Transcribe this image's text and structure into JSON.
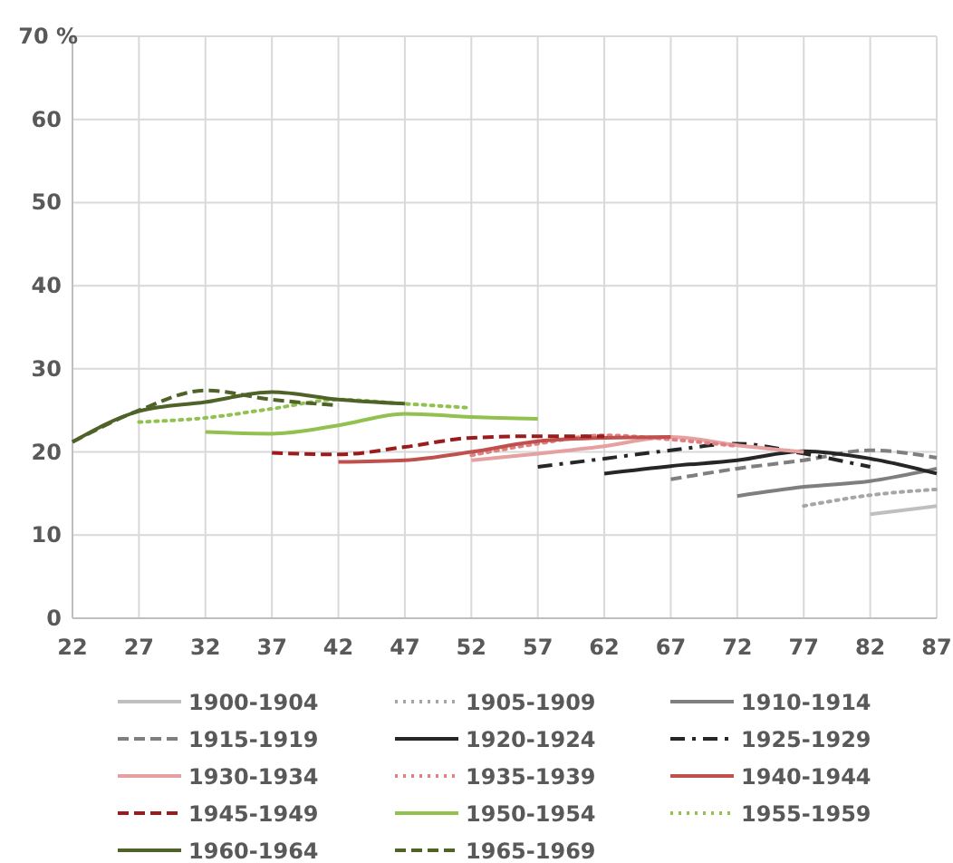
{
  "chart_data": {
    "type": "line",
    "xlim": [
      22,
      87
    ],
    "xticks": [
      22,
      27,
      32,
      37,
      42,
      47,
      52,
      57,
      62,
      67,
      72,
      77,
      82,
      87
    ],
    "ylim": [
      0,
      70
    ],
    "yticks": [
      0,
      10,
      20,
      30,
      40,
      50,
      60,
      {
        "value": 70,
        "label": "70 %"
      }
    ],
    "grid": true,
    "legend": "bottom",
    "series": [
      {
        "name": "1900-1904",
        "color": "#bfbfbf",
        "line_style": "solid",
        "x": [
          82,
          87
        ],
        "values": [
          12.5,
          13.5
        ]
      },
      {
        "name": "1905-1909",
        "color": "#a6a6a6",
        "line_style": "dotted",
        "x": [
          77,
          82,
          87
        ],
        "values": [
          13.5,
          14.8,
          15.5
        ]
      },
      {
        "name": "1910-1914",
        "color": "#7f7f7f",
        "line_style": "solid",
        "x": [
          72,
          77,
          82,
          87
        ],
        "values": [
          14.7,
          15.8,
          16.5,
          18
        ]
      },
      {
        "name": "1915-1919",
        "color": "#7f7f7f",
        "line_style": "dashed",
        "x": [
          67,
          72,
          77,
          82,
          87
        ],
        "values": [
          16.7,
          18,
          19,
          20.2,
          19.3
        ]
      },
      {
        "name": "1920-1924",
        "color": "#262626",
        "line_style": "solid",
        "x": [
          62,
          67,
          72,
          77,
          82,
          87
        ],
        "values": [
          17.4,
          18.3,
          19,
          20.1,
          19.2,
          17.4
        ]
      },
      {
        "name": "1925-1929",
        "color": "#262626",
        "line_style": "dashdot",
        "x": [
          57,
          62,
          67,
          72,
          77,
          82
        ],
        "values": [
          18.2,
          19.2,
          20.2,
          21,
          19.8,
          18.2
        ]
      },
      {
        "name": "1930-1934",
        "color": "#e6a0a0",
        "line_style": "solid",
        "x": [
          52,
          57,
          62,
          67,
          72,
          77
        ],
        "values": [
          19,
          19.8,
          20.7,
          21.8,
          20.8,
          20
        ]
      },
      {
        "name": "1935-1939",
        "color": "#e08080",
        "line_style": "dotted",
        "x": [
          52,
          57,
          62,
          67,
          72
        ],
        "values": [
          19.6,
          21,
          22,
          21.5,
          20.7
        ]
      },
      {
        "name": "1940-1944",
        "color": "#c0504d",
        "line_style": "solid",
        "x": [
          42,
          47,
          52,
          57,
          62,
          67
        ],
        "values": [
          18.8,
          19,
          20,
          21.3,
          21.7,
          21.8
        ]
      },
      {
        "name": "1945-1949",
        "color": "#9b1c1c",
        "line_style": "dashed",
        "x": [
          37,
          42,
          47,
          52,
          57,
          62
        ],
        "values": [
          19.9,
          19.7,
          20.6,
          21.7,
          21.9,
          21.9
        ]
      },
      {
        "name": "1950-1954",
        "color": "#92c14f",
        "line_style": "solid",
        "x": [
          32,
          37,
          42,
          47,
          52,
          57
        ],
        "values": [
          22.4,
          22.2,
          23.2,
          24.6,
          24.2,
          24
        ]
      },
      {
        "name": "1955-1959",
        "color": "#92c14f",
        "line_style": "dotted",
        "x": [
          27,
          32,
          37,
          42,
          47,
          52
        ],
        "values": [
          23.6,
          24.1,
          25.2,
          26.3,
          25.8,
          25.3
        ]
      },
      {
        "name": "1960-1964",
        "color": "#4f6228",
        "line_style": "solid",
        "x": [
          22,
          27,
          32,
          37,
          42,
          47
        ],
        "values": [
          21.2,
          24.9,
          26,
          27.2,
          26.3,
          25.8
        ]
      },
      {
        "name": "1965-1969",
        "color": "#4f6228",
        "line_style": "dashed",
        "x": [
          22,
          27,
          32,
          37,
          42
        ],
        "values": [
          21.2,
          25,
          27.4,
          26.3,
          25.6
        ]
      }
    ]
  }
}
